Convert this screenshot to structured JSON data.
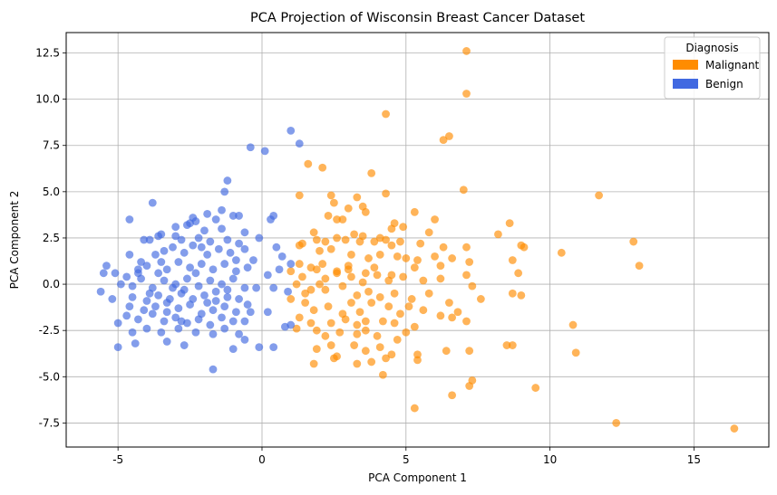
{
  "chart_data": {
    "type": "scatter",
    "title": "PCA Projection of Wisconsin Breast Cancer Dataset",
    "xlabel": "PCA Component 1",
    "ylabel": "PCA Component 2",
    "xlim": [
      -6.8,
      17.6
    ],
    "ylim": [
      -8.8,
      13.6
    ],
    "xticks": [
      -5,
      0,
      5,
      10,
      15
    ],
    "yticks": [
      -7.5,
      -5.0,
      -2.5,
      0.0,
      2.5,
      5.0,
      7.5,
      10.0,
      12.5
    ],
    "grid": true,
    "legend": {
      "title": "Diagnosis",
      "placement": "top-right",
      "entries": [
        {
          "label": "Malignant",
          "color": "#ff8c00"
        },
        {
          "label": "Benign",
          "color": "#4169e1"
        }
      ]
    },
    "series": [
      {
        "name": "Malignant",
        "color": "#ff8c00",
        "points": [
          [
            7.1,
            12.6
          ],
          [
            7.1,
            10.3
          ],
          [
            4.3,
            9.2
          ],
          [
            6.5,
            8.0
          ],
          [
            6.3,
            7.8
          ],
          [
            11.7,
            4.8
          ],
          [
            1.6,
            6.5
          ],
          [
            2.1,
            6.3
          ],
          [
            3.8,
            6.0
          ],
          [
            7.0,
            5.1
          ],
          [
            4.3,
            4.9
          ],
          [
            1.3,
            4.8
          ],
          [
            2.4,
            4.8
          ],
          [
            3.3,
            4.7
          ],
          [
            2.5,
            4.4
          ],
          [
            3.0,
            4.1
          ],
          [
            3.5,
            4.2
          ],
          [
            3.6,
            3.9
          ],
          [
            5.3,
            3.9
          ],
          [
            2.6,
            3.5
          ],
          [
            4.6,
            3.3
          ],
          [
            4.9,
            3.1
          ],
          [
            6.0,
            3.5
          ],
          [
            8.6,
            3.3
          ],
          [
            2.3,
            3.7
          ],
          [
            2.8,
            3.5
          ],
          [
            4.5,
            3.0
          ],
          [
            1.8,
            2.8
          ],
          [
            3.2,
            2.7
          ],
          [
            3.5,
            2.6
          ],
          [
            4.1,
            2.5
          ],
          [
            4.3,
            2.4
          ],
          [
            4.8,
            2.3
          ],
          [
            5.8,
            2.8
          ],
          [
            8.2,
            2.7
          ],
          [
            12.9,
            2.3
          ],
          [
            1.4,
            2.2
          ],
          [
            1.9,
            2.4
          ],
          [
            2.2,
            2.3
          ],
          [
            2.6,
            2.5
          ],
          [
            2.9,
            2.4
          ],
          [
            3.4,
            2.3
          ],
          [
            3.9,
            2.3
          ],
          [
            4.5,
            2.1
          ],
          [
            5.5,
            2.2
          ],
          [
            6.3,
            2.0
          ],
          [
            7.1,
            2.0
          ],
          [
            9.0,
            2.1
          ],
          [
            9.1,
            2.0
          ],
          [
            10.4,
            1.7
          ],
          [
            1.3,
            2.1
          ],
          [
            2.0,
            1.8
          ],
          [
            2.4,
            1.9
          ],
          [
            3.1,
            1.6
          ],
          [
            3.7,
            1.4
          ],
          [
            4.1,
            1.6
          ],
          [
            4.7,
            1.5
          ],
          [
            5.0,
            1.4
          ],
          [
            5.4,
            1.3
          ],
          [
            6.0,
            1.5
          ],
          [
            6.6,
            1.4
          ],
          [
            8.7,
            1.3
          ],
          [
            13.1,
            1.0
          ],
          [
            1.3,
            1.1
          ],
          [
            1.7,
            0.9
          ],
          [
            2.1,
            1.1
          ],
          [
            2.6,
            0.7
          ],
          [
            3.0,
            0.8
          ],
          [
            3.6,
            0.6
          ],
          [
            3.9,
            0.9
          ],
          [
            4.5,
            0.5
          ],
          [
            5.3,
            0.9
          ],
          [
            6.2,
            1.0
          ],
          [
            7.2,
            1.2
          ],
          [
            8.9,
            0.6
          ],
          [
            1.0,
            0.7
          ],
          [
            1.4,
            0.4
          ],
          [
            1.9,
            0.8
          ],
          [
            2.2,
            0.3
          ],
          [
            2.6,
            0.6
          ],
          [
            3.1,
            0.4
          ],
          [
            3.5,
            0.1
          ],
          [
            4.0,
            0.5
          ],
          [
            4.4,
            0.2
          ],
          [
            4.9,
            0.4
          ],
          [
            5.6,
            0.2
          ],
          [
            6.2,
            0.3
          ],
          [
            7.1,
            0.5
          ],
          [
            7.3,
            -0.1
          ],
          [
            1.2,
            0.0
          ],
          [
            1.7,
            -0.3
          ],
          [
            2.2,
            -0.3
          ],
          [
            2.8,
            -0.1
          ],
          [
            3.3,
            -0.6
          ],
          [
            3.7,
            -0.4
          ],
          [
            4.1,
            -0.7
          ],
          [
            4.6,
            -0.5
          ],
          [
            5.2,
            -0.8
          ],
          [
            5.8,
            -0.5
          ],
          [
            6.5,
            -1.0
          ],
          [
            7.6,
            -0.8
          ],
          [
            8.7,
            -0.5
          ],
          [
            9.0,
            -0.6
          ],
          [
            1.0,
            -0.8
          ],
          [
            1.5,
            -1.0
          ],
          [
            1.8,
            -1.4
          ],
          [
            2.3,
            -1.2
          ],
          [
            2.8,
            -1.6
          ],
          [
            3.1,
            -1.0
          ],
          [
            3.4,
            -1.5
          ],
          [
            3.8,
            -1.0
          ],
          [
            4.4,
            -1.2
          ],
          [
            4.8,
            -1.6
          ],
          [
            5.1,
            -1.2
          ],
          [
            5.6,
            -1.4
          ],
          [
            6.2,
            -1.7
          ],
          [
            6.8,
            -1.5
          ],
          [
            1.3,
            -1.8
          ],
          [
            1.7,
            -2.1
          ],
          [
            2.4,
            -2.1
          ],
          [
            2.9,
            -1.9
          ],
          [
            3.3,
            -2.2
          ],
          [
            3.6,
            -2.0
          ],
          [
            4.2,
            -2.0
          ],
          [
            4.6,
            -2.1
          ],
          [
            5.3,
            -2.3
          ],
          [
            6.6,
            -1.8
          ],
          [
            7.1,
            -2.0
          ],
          [
            10.8,
            -2.2
          ],
          [
            1.2,
            -2.4
          ],
          [
            1.9,
            -2.5
          ],
          [
            2.2,
            -2.8
          ],
          [
            2.7,
            -2.6
          ],
          [
            3.3,
            -2.7
          ],
          [
            3.6,
            -2.5
          ],
          [
            4.0,
            -2.8
          ],
          [
            4.7,
            -3.0
          ],
          [
            5.0,
            -2.6
          ],
          [
            8.7,
            -3.3
          ],
          [
            1.9,
            -3.5
          ],
          [
            2.4,
            -3.3
          ],
          [
            3.2,
            -3.3
          ],
          [
            3.6,
            -3.6
          ],
          [
            4.1,
            -3.4
          ],
          [
            4.5,
            -3.8
          ],
          [
            5.4,
            -3.8
          ],
          [
            6.4,
            -3.6
          ],
          [
            7.2,
            -3.6
          ],
          [
            8.5,
            -3.3
          ],
          [
            10.9,
            -3.7
          ],
          [
            1.8,
            -4.3
          ],
          [
            2.5,
            -4.0
          ],
          [
            3.3,
            -4.3
          ],
          [
            3.8,
            -4.2
          ],
          [
            4.3,
            -4.0
          ],
          [
            5.4,
            -4.1
          ],
          [
            4.2,
            -4.9
          ],
          [
            7.3,
            -5.2
          ],
          [
            7.2,
            -5.5
          ],
          [
            9.5,
            -5.6
          ],
          [
            6.6,
            -6.0
          ],
          [
            5.3,
            -6.7
          ],
          [
            12.3,
            -7.5
          ],
          [
            16.4,
            -7.8
          ],
          [
            2.6,
            -3.9
          ],
          [
            1.5,
            -0.5
          ],
          [
            2.0,
            0.0
          ],
          [
            3.0,
            1.0
          ]
        ]
      },
      {
        "name": "Benign",
        "color": "#4169e1",
        "points": [
          [
            1.0,
            8.3
          ],
          [
            1.3,
            7.6
          ],
          [
            -0.4,
            7.4
          ],
          [
            0.1,
            7.2
          ],
          [
            -1.2,
            5.6
          ],
          [
            -1.3,
            5.0
          ],
          [
            -3.8,
            4.4
          ],
          [
            -1.4,
            4.0
          ],
          [
            -2.4,
            3.6
          ],
          [
            -1.6,
            3.5
          ],
          [
            -1.0,
            3.7
          ],
          [
            -0.8,
            3.7
          ],
          [
            0.4,
            3.7
          ],
          [
            -4.6,
            3.5
          ],
          [
            -3.5,
            2.7
          ],
          [
            -3.0,
            2.6
          ],
          [
            -2.6,
            3.2
          ],
          [
            -2.3,
            3.4
          ],
          [
            -2.0,
            2.9
          ],
          [
            -1.4,
            3.0
          ],
          [
            -0.6,
            2.8
          ],
          [
            -0.1,
            2.5
          ],
          [
            0.3,
            3.5
          ],
          [
            -4.1,
            2.4
          ],
          [
            -3.9,
            2.4
          ],
          [
            -3.6,
            2.6
          ],
          [
            -2.8,
            2.4
          ],
          [
            -2.2,
            2.5
          ],
          [
            -1.8,
            2.3
          ],
          [
            -1.2,
            2.4
          ],
          [
            -0.8,
            2.2
          ],
          [
            0.5,
            2.0
          ],
          [
            -5.4,
            1.0
          ],
          [
            -4.6,
            1.6
          ],
          [
            -4.2,
            1.2
          ],
          [
            -3.7,
            1.6
          ],
          [
            -3.4,
            1.8
          ],
          [
            -3.1,
            2.0
          ],
          [
            -2.7,
            1.7
          ],
          [
            -2.4,
            2.1
          ],
          [
            -1.9,
            1.6
          ],
          [
            -1.5,
            1.9
          ],
          [
            -1.1,
            1.7
          ],
          [
            -0.6,
            1.9
          ],
          [
            -0.3,
            1.3
          ],
          [
            0.7,
            1.5
          ],
          [
            -5.5,
            0.6
          ],
          [
            -5.1,
            0.6
          ],
          [
            -4.7,
            0.4
          ],
          [
            -4.3,
            0.8
          ],
          [
            -4.0,
            1.0
          ],
          [
            -3.6,
            0.6
          ],
          [
            -3.3,
            0.8
          ],
          [
            -2.9,
            1.2
          ],
          [
            -2.5,
            0.9
          ],
          [
            -2.1,
            1.1
          ],
          [
            -1.7,
            0.8
          ],
          [
            -1.3,
            1.1
          ],
          [
            -0.9,
            0.7
          ],
          [
            -0.5,
            0.9
          ],
          [
            0.2,
            0.5
          ],
          [
            0.6,
            0.8
          ],
          [
            1.0,
            1.1
          ],
          [
            -4.9,
            0.0
          ],
          [
            -4.5,
            -0.1
          ],
          [
            -4.2,
            0.3
          ],
          [
            -3.8,
            -0.2
          ],
          [
            -3.4,
            0.2
          ],
          [
            -3.0,
            0.0
          ],
          [
            -2.6,
            0.3
          ],
          [
            -2.2,
            -0.1
          ],
          [
            -1.8,
            0.2
          ],
          [
            -1.4,
            0.0
          ],
          [
            -1.0,
            0.3
          ],
          [
            -0.6,
            -0.2
          ],
          [
            -0.2,
            -0.2
          ],
          [
            0.4,
            -0.2
          ],
          [
            0.9,
            -0.4
          ],
          [
            -5.6,
            -0.4
          ],
          [
            -5.2,
            -0.8
          ],
          [
            -4.5,
            -0.7
          ],
          [
            -4.0,
            -0.9
          ],
          [
            -3.6,
            -0.6
          ],
          [
            -3.2,
            -0.8
          ],
          [
            -2.8,
            -0.5
          ],
          [
            -2.4,
            -0.8
          ],
          [
            -2.0,
            -0.6
          ],
          [
            -1.6,
            -0.9
          ],
          [
            -1.2,
            -0.7
          ],
          [
            -0.8,
            -0.8
          ],
          [
            -0.5,
            -1.1
          ],
          [
            0.2,
            -1.5
          ],
          [
            -4.6,
            -1.2
          ],
          [
            -4.1,
            -1.4
          ],
          [
            -3.7,
            -1.2
          ],
          [
            -3.3,
            -1.5
          ],
          [
            -2.9,
            -1.3
          ],
          [
            -2.5,
            -1.1
          ],
          [
            -2.1,
            -1.6
          ],
          [
            -1.7,
            -1.4
          ],
          [
            -1.3,
            -1.2
          ],
          [
            -0.9,
            -1.5
          ],
          [
            -0.4,
            -1.5
          ],
          [
            -5.0,
            -2.1
          ],
          [
            -4.7,
            -1.7
          ],
          [
            -4.3,
            -1.9
          ],
          [
            -3.8,
            -1.6
          ],
          [
            -3.4,
            -2.0
          ],
          [
            -3.0,
            -1.8
          ],
          [
            -2.6,
            -2.1
          ],
          [
            -2.2,
            -1.9
          ],
          [
            -1.8,
            -2.2
          ],
          [
            -1.4,
            -1.8
          ],
          [
            -1.0,
            -2.0
          ],
          [
            -0.6,
            -2.0
          ],
          [
            0.8,
            -2.3
          ],
          [
            1.0,
            -2.2
          ],
          [
            -4.5,
            -2.6
          ],
          [
            -4.0,
            -2.4
          ],
          [
            -3.5,
            -2.6
          ],
          [
            -2.9,
            -2.4
          ],
          [
            -2.3,
            -2.6
          ],
          [
            -1.7,
            -2.7
          ],
          [
            -1.3,
            -2.4
          ],
          [
            -0.8,
            -2.7
          ],
          [
            -5.0,
            -3.4
          ],
          [
            -4.4,
            -3.2
          ],
          [
            -3.3,
            -3.1
          ],
          [
            -2.7,
            -3.3
          ],
          [
            -1.0,
            -3.5
          ],
          [
            -0.1,
            -3.4
          ],
          [
            0.4,
            -3.4
          ],
          [
            -1.7,
            -4.6
          ],
          [
            -0.6,
            -3.0
          ],
          [
            -3.0,
            3.1
          ],
          [
            -2.5,
            3.3
          ],
          [
            -1.9,
            3.8
          ],
          [
            -2.7,
            -0.3
          ],
          [
            -3.1,
            -0.2
          ],
          [
            -2.3,
            0.6
          ],
          [
            -1.9,
            -1.0
          ],
          [
            -3.5,
            1.2
          ],
          [
            -2.1,
            2.0
          ],
          [
            -1.6,
            -0.4
          ],
          [
            -3.9,
            -0.5
          ],
          [
            -0.9,
            1.3
          ],
          [
            -2.8,
            -2.0
          ],
          [
            -4.3,
            0.6
          ],
          [
            -1.2,
            -0.3
          ],
          [
            -3.3,
            -1.0
          ]
        ]
      }
    ]
  }
}
